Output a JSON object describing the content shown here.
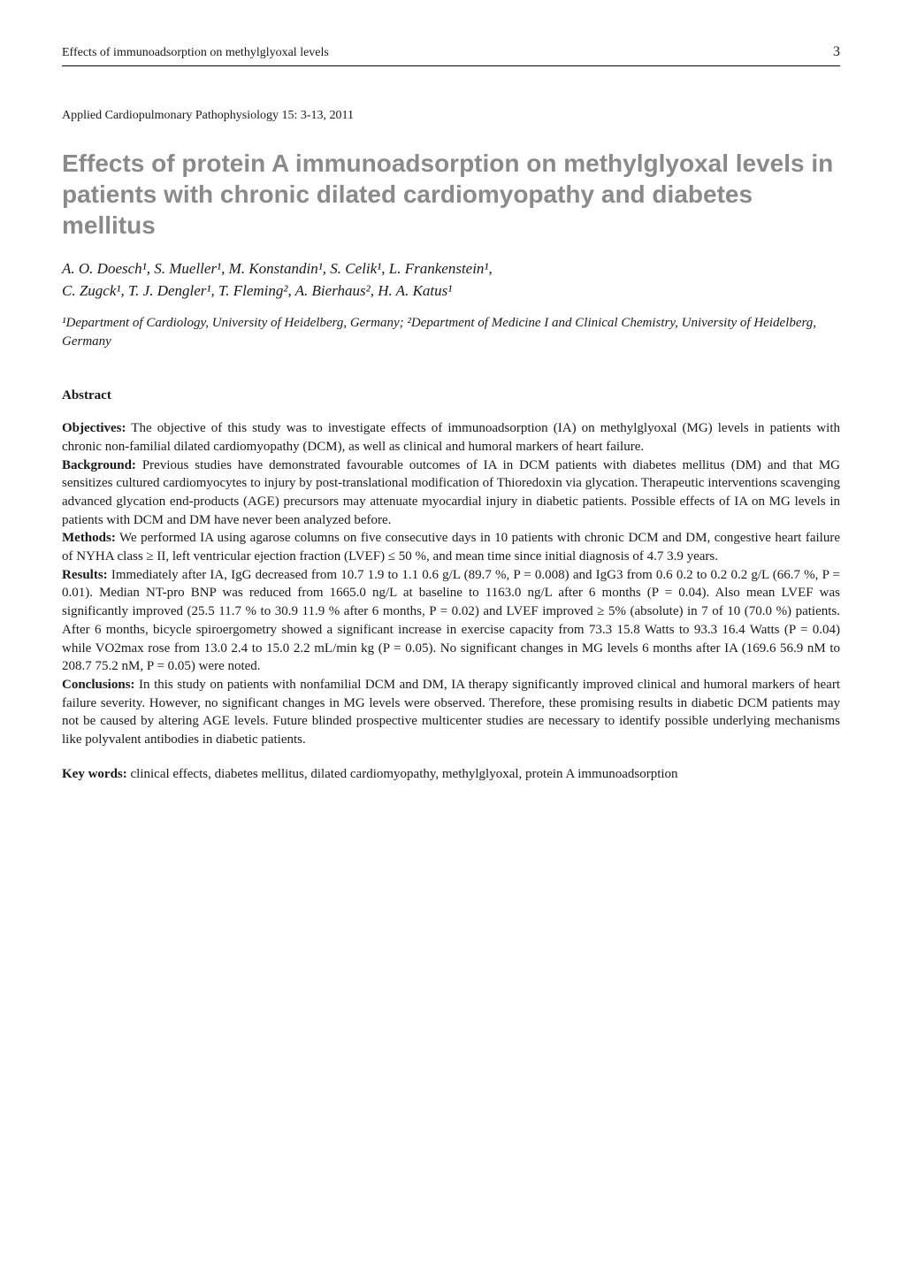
{
  "header": {
    "running_head": "Effects of immunoadsorption on methylglyoxal levels",
    "page_number": "3"
  },
  "journal_line": "Applied Cardiopulmonary Pathophysiology 15: 3-13, 2011",
  "title": "Effects of protein A immunoadsorption on methylglyoxal levels in patients with chronic dilated cardiomyopathy and diabetes mellitus",
  "authors_line1": "A. O. Doesch¹, S. Mueller¹, M. Konstandin¹, S. Celik¹, L. Frankenstein¹,",
  "authors_line2": "C. Zugck¹, T. J. Dengler¹, T. Fleming², A. Bierhaus², H. A. Katus¹",
  "affiliations": "¹Department of Cardiology, University of Heidelberg, Germany; ²Department of Medicine I and Clinical Chemistry, University of Heidelberg, Germany",
  "abstract_heading": "Abstract",
  "abstract": {
    "objectives_label": "Objectives:",
    "objectives_text": " The objective of this study was to investigate effects of immunoadsorption (IA) on methylglyoxal (MG) levels in patients with chronic non-familial dilated cardiomyopathy (DCM), as well as clinical and humoral markers of heart failure.",
    "background_label": "Background:",
    "background_text": " Previous studies have demonstrated favourable outcomes of IA in DCM patients with diabetes mellitus (DM) and that MG sensitizes cultured cardiomyocytes to injury by post-translational modification of Thioredoxin via glycation. Therapeutic interventions scavenging advanced glycation end-products (AGE) precursors may attenuate myocardial injury in diabetic patients. Possible effects of IA on MG levels in patients with DCM and DM have never been analyzed before.",
    "methods_label": "Methods:",
    "methods_text": " We performed IA using agarose columns on five consecutive days in 10 patients with chronic DCM and DM, congestive heart failure of NYHA class ≥ II, left ventricular ejection fraction (LVEF) ≤ 50 %, and mean time since initial diagnosis of 4.7   3.9 years.",
    "results_label": "Results:",
    "results_text": " Immediately after IA, IgG decreased from 10.7   1.9 to 1.1   0.6 g/L (89.7 %, P = 0.008) and IgG3 from 0.6   0.2 to 0.2   0.2 g/L (66.7 %, P = 0.01). Median NT-pro BNP was reduced from 1665.0 ng/L at baseline to 1163.0 ng/L after 6 months (P = 0.04). Also mean LVEF was significantly improved (25.5   11.7 % to 30.9   11.9 % after 6 months, P = 0.02) and LVEF improved ≥ 5% (absolute) in 7 of 10 (70.0 %) patients. After 6 months, bicycle spiroergometry showed a significant increase in exercise capacity from 73.3   15.8 Watts to 93.3   16.4 Watts (P = 0.04) while VO2max rose from 13.0   2.4 to 15.0   2.2 mL/min kg (P = 0.05). No significant changes in MG levels 6 months after IA (169.6   56.9 nM to 208.7   75.2 nM, P = 0.05) were noted.",
    "conclusions_label": "Conclusions:",
    "conclusions_text": " In this study on patients with nonfamilial DCM and DM, IA therapy significantly improved clinical and humoral markers of heart failure severity. However, no significant changes in MG levels were observed. Therefore, these promising results in diabetic DCM patients may not be caused by altering AGE levels. Future blinded prospective multicenter studies are necessary to identify possible underlying mechanisms like polyvalent antibodies in diabetic patients."
  },
  "keywords": {
    "label": "Key words:",
    "text": " clinical effects, diabetes mellitus, dilated cardiomyopathy, methylglyoxal, protein A immunoadsorption"
  }
}
